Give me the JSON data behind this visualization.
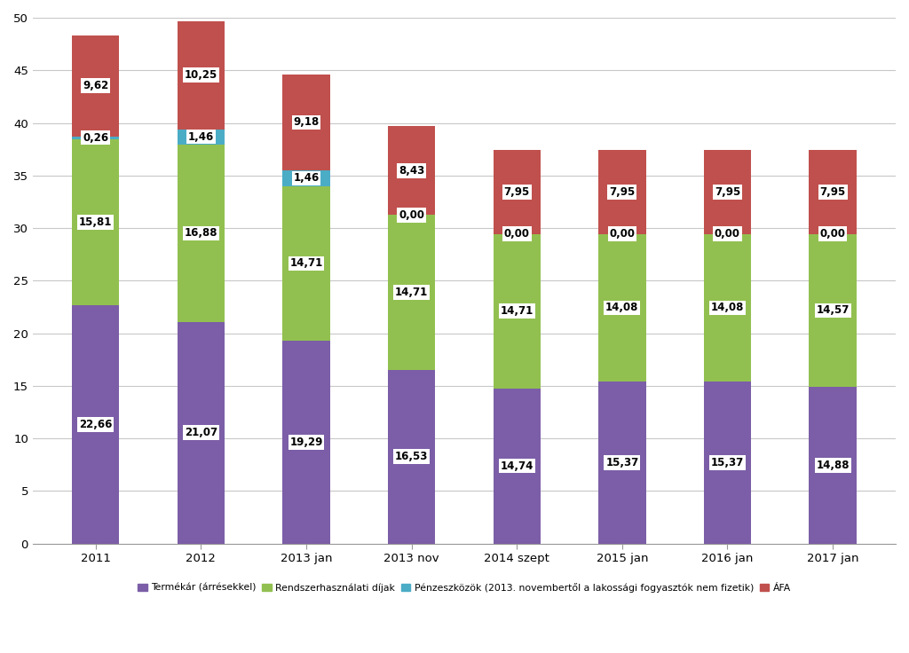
{
  "categories": [
    "2011",
    "2012",
    "2013 jan",
    "2013 nov",
    "2014 szept",
    "2015 jan",
    "2016 jan",
    "2017 jan"
  ],
  "termekár": [
    22.66,
    21.07,
    19.29,
    16.53,
    14.74,
    15.37,
    15.37,
    14.88
  ],
  "rendszer": [
    15.81,
    16.88,
    14.71,
    14.71,
    14.71,
    14.08,
    14.08,
    14.57
  ],
  "pénzeszközök": [
    0.26,
    1.46,
    1.46,
    0.0,
    0.0,
    0.0,
    0.0,
    0.0
  ],
  "afa": [
    9.62,
    10.25,
    9.18,
    8.43,
    7.95,
    7.95,
    7.95,
    7.95
  ],
  "color_termekár": "#7B5EA7",
  "color_rendszer": "#92C050",
  "color_pénzeszközök": "#4BACC6",
  "color_afa": "#C0504D",
  "ylim": [
    0,
    50
  ],
  "yticks": [
    0,
    5,
    10,
    15,
    20,
    25,
    30,
    35,
    40,
    45,
    50
  ],
  "legend_labels": [
    "Termékár (árrésekkel)",
    "Rendszerhasználati díjak",
    "Pénzeszközök (2013. novembertől a lakossági fogyasztók nem fizetik)",
    "ÁFA"
  ],
  "bg_color": "#FFFFFF",
  "plot_bg_color": "#FFFFFF",
  "grid_color": "#C8C8C8",
  "label_fontsize": 8.5,
  "tick_fontsize": 9.5,
  "bar_width": 0.45
}
